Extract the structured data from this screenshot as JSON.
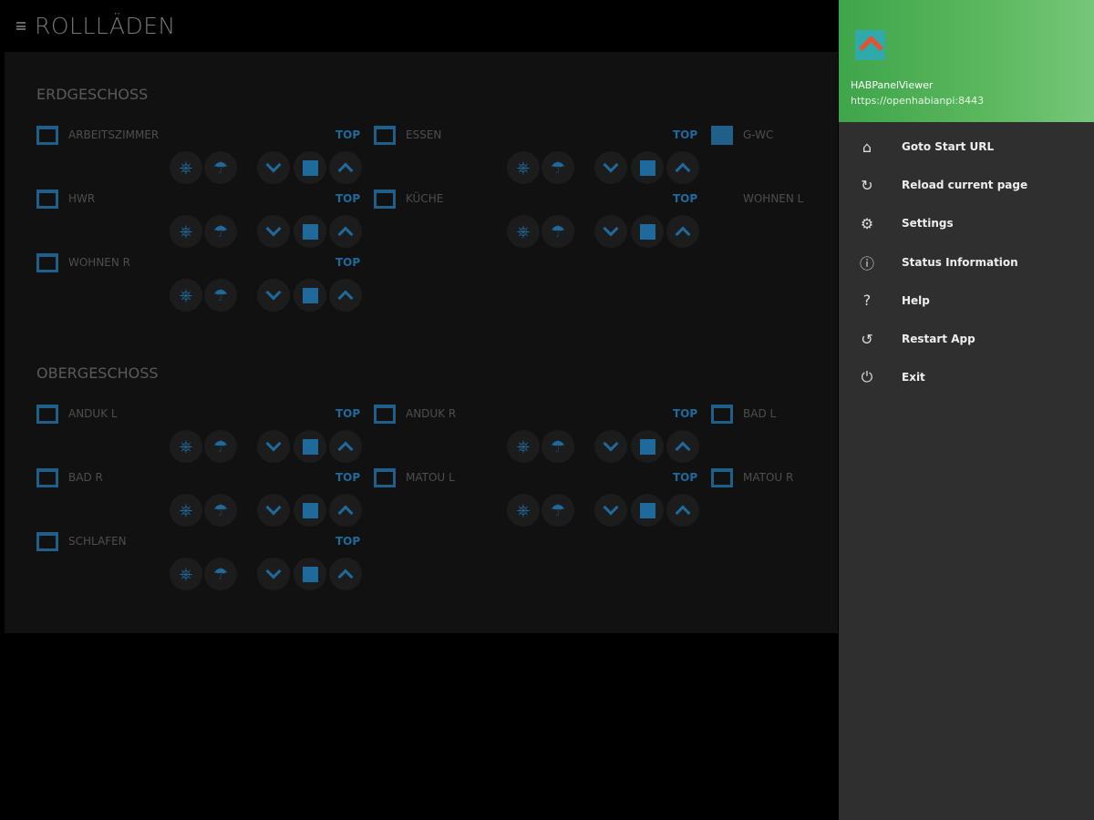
{
  "header": {
    "title": "ROLLLÄDEN",
    "menu_icon": "hamburger-icon"
  },
  "sections": [
    {
      "title": "ERDGESCHOSS",
      "rooms": [
        {
          "name": "ARBEITSZIMMER",
          "state": "open",
          "top": "TOP"
        },
        {
          "name": "ESSEN",
          "state": "open",
          "top": "TOP"
        },
        {
          "name": "G-WC",
          "state": "closed",
          "top": ""
        },
        {
          "name": "HWR",
          "state": "open",
          "top": "TOP"
        },
        {
          "name": "KÜCHE",
          "state": "open",
          "top": "TOP"
        },
        {
          "name": "WOHNEN L",
          "state": "none",
          "top": ""
        },
        {
          "name": "WOHNEN R",
          "state": "open",
          "top": "TOP"
        }
      ]
    },
    {
      "title": "OBERGESCHOSS",
      "rooms": [
        {
          "name": "ANDUK L",
          "state": "open",
          "top": "TOP"
        },
        {
          "name": "ANDUK R",
          "state": "open",
          "top": "TOP"
        },
        {
          "name": "BAD L",
          "state": "open",
          "top": ""
        },
        {
          "name": "BAD R",
          "state": "open",
          "top": "TOP"
        },
        {
          "name": "MATOU L",
          "state": "open",
          "top": "TOP"
        },
        {
          "name": "MATOU R",
          "state": "open",
          "top": ""
        },
        {
          "name": "SCHLAFEN",
          "state": "open",
          "top": "TOP"
        }
      ]
    }
  ],
  "accent": "#1f6a9c",
  "drawer": {
    "app_name": "HABPanelViewer",
    "url": "https://openhabianpi:8443",
    "items": [
      {
        "label": "Goto Start URL",
        "icon": "home-icon"
      },
      {
        "label": "Reload current page",
        "icon": "reload-icon"
      },
      {
        "label": "Settings",
        "icon": "gear-icon"
      },
      {
        "label": "Status Information",
        "icon": "info-icon"
      },
      {
        "label": "Help",
        "icon": "help-icon"
      },
      {
        "label": "Restart App",
        "icon": "restart-icon"
      },
      {
        "label": "Exit",
        "icon": "power-icon"
      }
    ]
  }
}
